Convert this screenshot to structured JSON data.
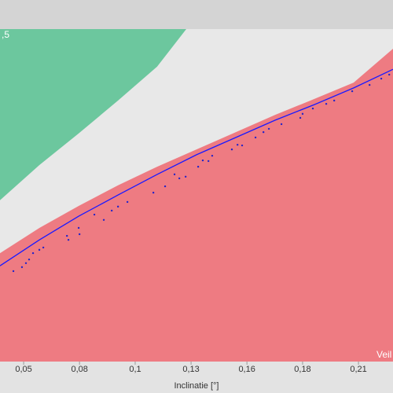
{
  "chart_data": {
    "type": "line",
    "x_label": "Inclinatie [°]",
    "legend_fragment": ",5",
    "region_label": "Veil",
    "xlim": [
      0.0387,
      0.2265
    ],
    "ylim": [
      0,
      1
    ],
    "xticks": [
      {
        "value": 0.05,
        "label": "0,05"
      },
      {
        "value": 0.0767,
        "label": "0,08"
      },
      {
        "value": 0.1033,
        "label": "0,1"
      },
      {
        "value": 0.13,
        "label": "0,13"
      },
      {
        "value": 0.1567,
        "label": "0,16"
      },
      {
        "value": 0.1833,
        "label": "0,18"
      },
      {
        "value": 0.21,
        "label": "0,21"
      }
    ],
    "areas": [
      {
        "color": "#ee7b82",
        "x": [
          0.0387,
          0.0575,
          0.0763,
          0.0951,
          0.1138,
          0.1326,
          0.1514,
          0.1702,
          0.189,
          0.2077,
          0.2265
        ],
        "values": [
          0.326,
          0.402,
          0.468,
          0.53,
          0.586,
          0.638,
          0.69,
          0.742,
          0.79,
          0.839,
          0.941
        ]
      },
      {
        "color": "#6cc79e",
        "x": [
          0.0387,
          0.0575,
          0.0763,
          0.0951,
          0.1138,
          0.1277
        ],
        "values": [
          0.485,
          0.591,
          0.686,
          0.785,
          0.887,
          1
        ]
      }
    ],
    "line": {
      "color": "#1a1aff",
      "x": [
        0.0387,
        0.0575,
        0.0763,
        0.0951,
        0.1138,
        0.1326,
        0.1514,
        0.1702,
        0.189,
        0.2077,
        0.2265
      ],
      "values": [
        0.288,
        0.366,
        0.437,
        0.501,
        0.563,
        0.622,
        0.674,
        0.726,
        0.773,
        0.823,
        0.879
      ]
    },
    "points": {
      "color": "#2323c8",
      "x": [
        0.0451,
        0.0492,
        0.0511,
        0.0526,
        0.0545,
        0.0575,
        0.0594,
        0.0707,
        0.0714,
        0.0763,
        0.0767,
        0.0838,
        0.0883,
        0.0921,
        0.0951,
        0.0996,
        0.112,
        0.1176,
        0.1221,
        0.1244,
        0.1274,
        0.1334,
        0.1356,
        0.1383,
        0.1401,
        0.1495,
        0.1522,
        0.1544,
        0.1608,
        0.1646,
        0.1672,
        0.1732,
        0.1822,
        0.1833,
        0.1882,
        0.1946,
        0.1984,
        0.207,
        0.2153,
        0.2209,
        0.2247
      ],
      "values": [
        0.272,
        0.284,
        0.296,
        0.307,
        0.326,
        0.336,
        0.343,
        0.378,
        0.366,
        0.402,
        0.383,
        0.442,
        0.426,
        0.454,
        0.466,
        0.48,
        0.508,
        0.527,
        0.563,
        0.551,
        0.556,
        0.586,
        0.605,
        0.603,
        0.619,
        0.638,
        0.652,
        0.65,
        0.674,
        0.69,
        0.7,
        0.714,
        0.733,
        0.745,
        0.761,
        0.775,
        0.785,
        0.813,
        0.832,
        0.851,
        0.863
      ]
    }
  }
}
